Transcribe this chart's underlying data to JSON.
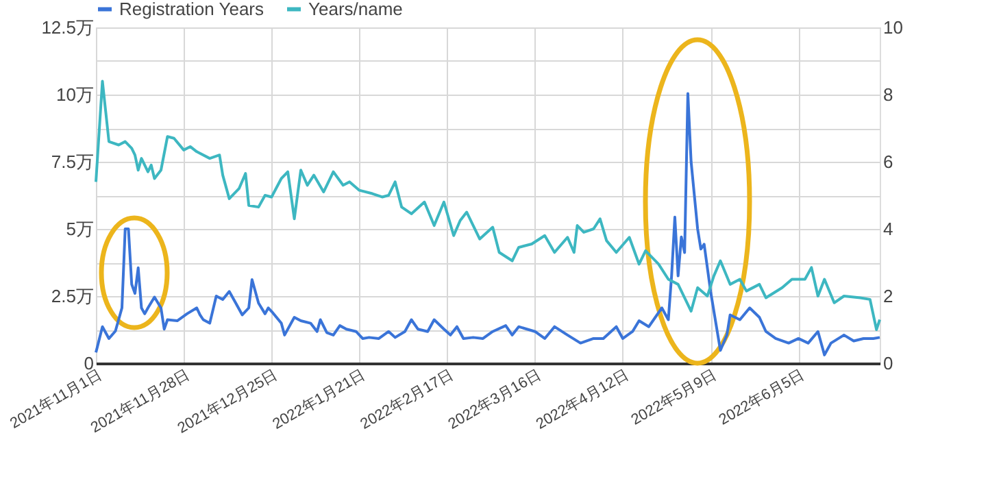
{
  "chart_data": {
    "type": "line",
    "legend": "top",
    "grid": true,
    "marker": "none",
    "line_style": "solid",
    "xlim": [
      "2021-11-01",
      "2022-06-30"
    ],
    "xticks": [
      {
        "value": "2021-11-01",
        "label": "2021年11月1日"
      },
      {
        "value": "2021-11-28",
        "label": "2021年11月28日"
      },
      {
        "value": "2021-12-25",
        "label": "2021年12月25日"
      },
      {
        "value": "2022-01-21",
        "label": "2022年1月21日"
      },
      {
        "value": "2022-02-17",
        "label": "2022年2月17日"
      },
      {
        "value": "2022-03-16",
        "label": "2022年3月16日"
      },
      {
        "value": "2022-04-12",
        "label": "2022年4月12日"
      },
      {
        "value": "2022-05-09",
        "label": "2022年5月9日"
      },
      {
        "value": "2022-06-05",
        "label": "2022年6月5日"
      }
    ],
    "ylim": [
      0,
      12.5
    ],
    "yticks": [
      0,
      {
        "value": 1.25,
        "label": null
      },
      {
        "value": 2.5,
        "label": "2.5万"
      },
      {
        "value": 3.75,
        "label": null
      },
      {
        "value": 5,
        "label": "5万"
      },
      {
        "value": 6.25,
        "label": null
      },
      {
        "value": 7.5,
        "label": "7.5万"
      },
      {
        "value": 8.75,
        "label": null
      },
      {
        "value": 10,
        "label": "10万"
      },
      {
        "value": 11.25,
        "label": null
      },
      {
        "value": 12.5,
        "label": "12.5万"
      }
    ],
    "y2lim": [
      0,
      10
    ],
    "y2ticks": [
      0,
      2,
      4,
      6,
      8,
      10
    ],
    "series": [
      {
        "name": "Registration Years",
        "color": "#3a74d8",
        "axis": "y",
        "x": [
          "2021-11-01",
          "2021-11-03",
          "2021-11-05",
          "2021-11-07",
          "2021-11-09",
          "2021-11-10",
          "2021-11-11",
          "2021-11-12",
          "2021-11-13",
          "2021-11-14",
          "2021-11-15",
          "2021-11-16",
          "2021-11-17",
          "2021-11-19",
          "2021-11-21",
          "2021-11-22",
          "2021-11-23",
          "2021-11-26",
          "2021-11-29",
          "2021-12-02",
          "2021-12-03",
          "2021-12-04",
          "2021-12-06",
          "2021-12-08",
          "2021-12-10",
          "2021-12-12",
          "2021-12-14",
          "2021-12-16",
          "2021-12-18",
          "2021-12-19",
          "2021-12-21",
          "2021-12-23",
          "2021-12-24",
          "2021-12-25",
          "2021-12-28",
          "2021-12-29",
          "2022-01-01",
          "2022-01-03",
          "2022-01-06",
          "2022-01-08",
          "2022-01-09",
          "2022-01-11",
          "2022-01-13",
          "2022-01-15",
          "2022-01-17",
          "2022-01-20",
          "2022-01-22",
          "2022-01-24",
          "2022-01-27",
          "2022-01-30",
          "2022-02-01",
          "2022-02-04",
          "2022-02-06",
          "2022-02-08",
          "2022-02-11",
          "2022-02-13",
          "2022-02-16",
          "2022-02-18",
          "2022-02-20",
          "2022-02-22",
          "2022-02-25",
          "2022-02-28",
          "2022-03-03",
          "2022-03-07",
          "2022-03-09",
          "2022-03-11",
          "2022-03-16",
          "2022-03-19",
          "2022-03-22",
          "2022-03-26",
          "2022-03-30",
          "2022-04-03",
          "2022-04-06",
          "2022-04-10",
          "2022-04-12",
          "2022-04-15",
          "2022-04-17",
          "2022-04-20",
          "2022-04-24",
          "2022-04-26",
          "2022-04-27",
          "2022-04-28",
          "2022-04-29",
          "2022-04-30",
          "2022-05-01",
          "2022-05-02",
          "2022-05-03",
          "2022-05-05",
          "2022-05-06",
          "2022-05-07",
          "2022-05-09",
          "2022-05-12",
          "2022-05-14",
          "2022-05-15",
          "2022-05-18",
          "2022-05-21",
          "2022-05-24",
          "2022-05-26",
          "2022-05-29",
          "2022-06-02",
          "2022-06-05",
          "2022-06-08",
          "2022-06-11",
          "2022-06-13",
          "2022-06-15",
          "2022-06-19",
          "2022-06-22",
          "2022-06-25",
          "2022-06-28",
          "2022-06-30"
        ],
        "values": [
          0.4,
          1.36,
          0.92,
          1.2,
          2.06,
          5.0,
          5.0,
          2.94,
          2.6,
          3.55,
          2.06,
          1.84,
          2.06,
          2.46,
          2.06,
          1.27,
          1.62,
          1.58,
          1.84,
          2.06,
          1.8,
          1.62,
          1.49,
          2.5,
          2.37,
          2.67,
          2.24,
          1.8,
          2.06,
          3.11,
          2.24,
          1.84,
          2.06,
          1.93,
          1.49,
          1.05,
          1.71,
          1.58,
          1.49,
          1.18,
          1.62,
          1.14,
          1.05,
          1.4,
          1.27,
          1.18,
          0.92,
          0.96,
          0.92,
          1.18,
          0.96,
          1.18,
          1.62,
          1.27,
          1.18,
          1.62,
          1.27,
          1.05,
          1.36,
          0.92,
          0.96,
          0.92,
          1.18,
          1.4,
          1.05,
          1.36,
          1.18,
          0.92,
          1.36,
          1.05,
          0.75,
          0.92,
          0.92,
          1.36,
          0.92,
          1.18,
          1.58,
          1.36,
          2.06,
          1.62,
          3.25,
          5.44,
          3.25,
          4.7,
          4.12,
          10.04,
          7.5,
          5.0,
          4.25,
          4.43,
          2.67,
          0.48,
          1.05,
          1.8,
          1.62,
          2.06,
          1.71,
          1.18,
          0.92,
          0.75,
          0.92,
          0.75,
          1.18,
          0.31,
          0.75,
          1.05,
          0.83,
          0.92,
          0.92,
          0.96
        ]
      },
      {
        "name": "Years/name",
        "color": "#3db7c1",
        "axis": "y2",
        "x": [
          "2021-11-01",
          "2021-11-03",
          "2021-11-04",
          "2021-11-05",
          "2021-11-08",
          "2021-11-10",
          "2021-11-12",
          "2021-11-13",
          "2021-11-14",
          "2021-11-15",
          "2021-11-17",
          "2021-11-18",
          "2021-11-19",
          "2021-11-21",
          "2021-11-23",
          "2021-11-25",
          "2021-11-28",
          "2021-11-30",
          "2021-12-02",
          "2021-12-06",
          "2021-12-09",
          "2021-12-10",
          "2021-12-12",
          "2021-12-15",
          "2021-12-17",
          "2021-12-18",
          "2021-12-21",
          "2021-12-23",
          "2021-12-25",
          "2021-12-28",
          "2021-12-30",
          "2022-01-01",
          "2022-01-03",
          "2022-01-05",
          "2022-01-07",
          "2022-01-10",
          "2022-01-13",
          "2022-01-16",
          "2022-01-18",
          "2022-01-21",
          "2022-01-25",
          "2022-01-28",
          "2022-01-30",
          "2022-02-01",
          "2022-02-03",
          "2022-02-06",
          "2022-02-10",
          "2022-02-13",
          "2022-02-16",
          "2022-02-19",
          "2022-02-21",
          "2022-02-23",
          "2022-02-25",
          "2022-02-27",
          "2022-03-03",
          "2022-03-05",
          "2022-03-09",
          "2022-03-11",
          "2022-03-15",
          "2022-03-19",
          "2022-03-22",
          "2022-03-26",
          "2022-03-28",
          "2022-03-29",
          "2022-03-31",
          "2022-04-03",
          "2022-04-05",
          "2022-04-07",
          "2022-04-10",
          "2022-04-14",
          "2022-04-17",
          "2022-04-19",
          "2022-04-23",
          "2022-04-26",
          "2022-04-29",
          "2022-05-03",
          "2022-05-05",
          "2022-05-08",
          "2022-05-10",
          "2022-05-12",
          "2022-05-15",
          "2022-05-18",
          "2022-05-20",
          "2022-05-24",
          "2022-05-26",
          "2022-05-31",
          "2022-06-03",
          "2022-06-07",
          "2022-06-09",
          "2022-06-11",
          "2022-06-13",
          "2022-06-16",
          "2022-06-19",
          "2022-06-24",
          "2022-06-27",
          "2022-06-29",
          "2022-06-30"
        ],
        "values": [
          5.4,
          8.4,
          7.5,
          6.6,
          6.5,
          6.6,
          6.4,
          6.2,
          5.75,
          6.1,
          5.7,
          5.9,
          5.5,
          5.75,
          6.75,
          6.7,
          6.35,
          6.45,
          6.3,
          6.1,
          6.2,
          5.6,
          4.9,
          5.2,
          5.65,
          4.7,
          4.65,
          5.0,
          4.95,
          5.5,
          5.7,
          4.3,
          5.75,
          5.3,
          5.6,
          5.1,
          5.7,
          5.3,
          5.4,
          5.15,
          5.05,
          4.95,
          5.0,
          5.4,
          4.65,
          4.45,
          4.8,
          4.1,
          4.8,
          3.8,
          4.25,
          4.5,
          4.1,
          3.7,
          4.05,
          3.3,
          3.05,
          3.45,
          3.55,
          3.8,
          3.3,
          3.75,
          3.3,
          4.1,
          3.9,
          4.0,
          4.3,
          3.65,
          3.3,
          3.75,
          2.95,
          3.35,
          2.95,
          2.5,
          2.35,
          1.55,
          2.25,
          2.0,
          2.6,
          3.05,
          2.35,
          2.5,
          2.15,
          2.35,
          1.95,
          2.25,
          2.5,
          2.5,
          2.85,
          2.0,
          2.5,
          1.8,
          2.0,
          1.95,
          1.9,
          1.0,
          1.3
        ]
      }
    ]
  }
}
